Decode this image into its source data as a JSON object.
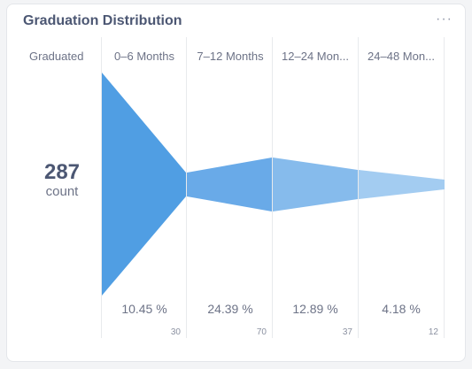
{
  "card": {
    "title": "Graduation Distribution",
    "more_icon": "ellipsis-icon"
  },
  "funnel": {
    "graduated_label": "Graduated",
    "total_value": "287",
    "total_unit": "count",
    "steps": [
      {
        "label": "0–6 Months",
        "percent": "10.45 %",
        "count": "30",
        "color": "#509ee3"
      },
      {
        "label": "7–12 Months",
        "percent": "24.39 %",
        "count": "70",
        "color": "#69aae8"
      },
      {
        "label": "12–24 Mon...",
        "percent": "12.89 %",
        "count": "37",
        "color": "#86bbec"
      },
      {
        "label": "24–48 Mon...",
        "percent": "4.18 %",
        "count": "12",
        "color": "#a3ccf1"
      }
    ]
  }
}
